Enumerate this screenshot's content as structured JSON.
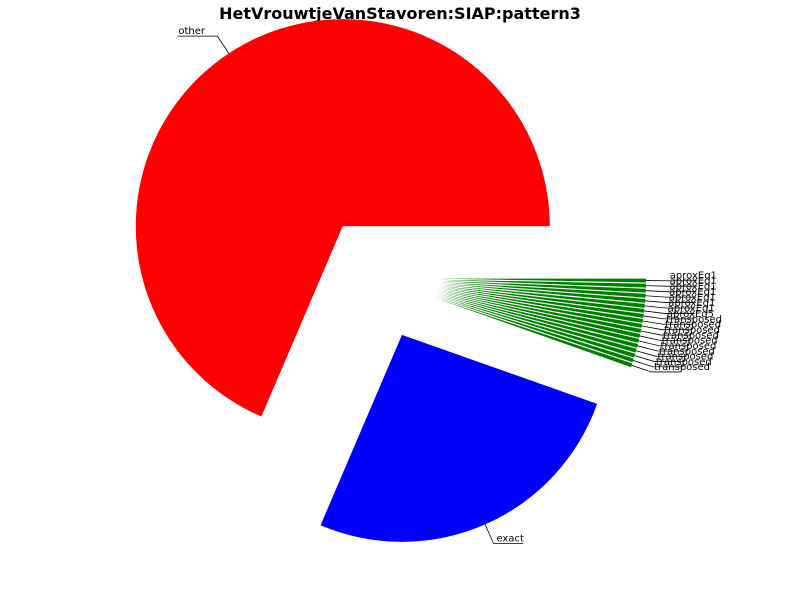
{
  "chart_data": {
    "type": "pie",
    "title": "HetVrouwtjeVanStavoren:SIAP:pattern3",
    "slices": [
      {
        "label": "other",
        "value": 68.5,
        "color": "#ff0000"
      },
      {
        "label": "exact",
        "value": 26.0,
        "color": "#0000ff"
      },
      {
        "label": "transposed",
        "value": 0.3,
        "color": "#008000"
      },
      {
        "label": "transposed",
        "value": 0.3,
        "color": "#008000"
      },
      {
        "label": "transposed",
        "value": 0.3,
        "color": "#008000"
      },
      {
        "label": "transposed",
        "value": 0.3,
        "color": "#008000"
      },
      {
        "label": "transposed",
        "value": 0.3,
        "color": "#008000"
      },
      {
        "label": "transposed",
        "value": 0.3,
        "color": "#008000"
      },
      {
        "label": "transposed",
        "value": 0.3,
        "color": "#008000"
      },
      {
        "label": "transposed",
        "value": 0.3,
        "color": "#008000"
      },
      {
        "label": "transposed",
        "value": 0.3,
        "color": "#008000"
      },
      {
        "label": "transposed",
        "value": 0.3,
        "color": "#008000"
      },
      {
        "label": "aproxEq5",
        "value": 0.3,
        "color": "#008000"
      },
      {
        "label": "aproxEq1",
        "value": 0.3,
        "color": "#008000"
      },
      {
        "label": "aproxEq1",
        "value": 0.3,
        "color": "#008000"
      },
      {
        "label": "aproxEq1",
        "value": 0.3,
        "color": "#008000"
      },
      {
        "label": "aproxEq1",
        "value": 0.3,
        "color": "#008000"
      },
      {
        "label": "aproxEq1",
        "value": 0.3,
        "color": "#008000"
      },
      {
        "label": "aproxEq1",
        "value": 0.3,
        "color": "#008000"
      },
      {
        "label": "aproxEq1",
        "value": 0.3,
        "color": "#008000"
      }
    ],
    "grid": false,
    "legend": "none"
  }
}
